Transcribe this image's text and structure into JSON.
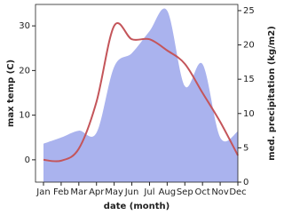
{
  "chart_data": {
    "type": "dual-axis-line-area",
    "categories": [
      "Jan",
      "Feb",
      "Mar",
      "Apr",
      "May",
      "Jun",
      "Jul",
      "Aug",
      "Sep",
      "Oct",
      "Nov",
      "Dec"
    ],
    "x_label": "date (month)",
    "y_label": "max temp (C)",
    "y2_label": "med. precipitation (kg/m2)",
    "ylim": [
      -5,
      34.8
    ],
    "yticks": [
      0,
      10,
      20,
      30
    ],
    "y2lim": [
      0,
      25.9
    ],
    "y2ticks": [
      0,
      5,
      10,
      15,
      20,
      25
    ],
    "series": [
      {
        "name": "med. precipitation",
        "kind": "area",
        "axis": "y2",
        "color": "#aab3ee",
        "values": [
          5.6,
          6.5,
          7.5,
          7.2,
          16.8,
          18.8,
          22,
          25,
          14,
          17.2,
          6.5,
          7.4
        ]
      },
      {
        "name": "max temp",
        "kind": "line",
        "axis": "y",
        "color": "#c4555a",
        "values": [
          0,
          -0.2,
          2.5,
          13,
          30,
          27,
          27,
          24.5,
          21.5,
          15,
          8.5,
          1
        ]
      }
    ]
  }
}
